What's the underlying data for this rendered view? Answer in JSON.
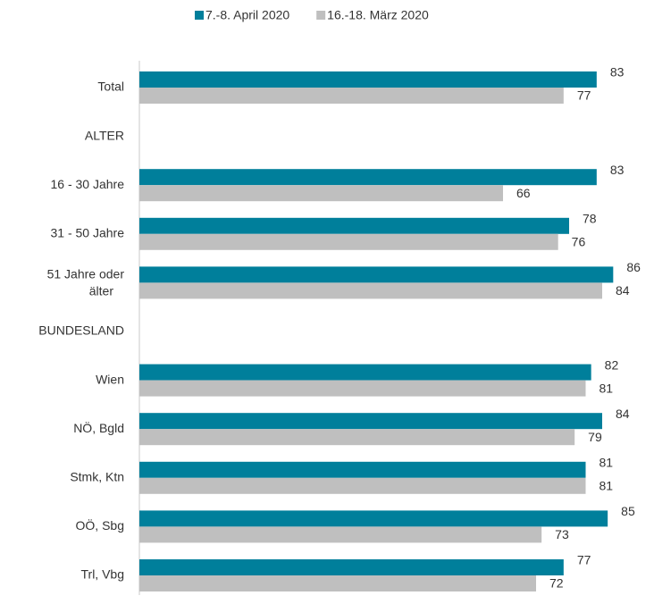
{
  "chart_data": {
    "type": "bar",
    "orientation": "horizontal",
    "categories": [
      "Total",
      "ALTER",
      "16 - 30 Jahre",
      "31 - 50 Jahre",
      "51 Jahre oder älter",
      "BUNDESLAND",
      "Wien",
      "NÖ, Bgld",
      "Stmk, Ktn",
      "OÖ, Sbg",
      "Trl, Vbg"
    ],
    "series": [
      {
        "name": "7.-8. April 2020",
        "color": "#007f9b",
        "values": [
          83,
          null,
          83,
          78,
          86,
          null,
          82,
          84,
          81,
          85,
          77
        ]
      },
      {
        "name": "16.-18. März 2020",
        "color": "#bfbfbf",
        "values": [
          77,
          null,
          66,
          76,
          84,
          null,
          81,
          79,
          81,
          73,
          72
        ]
      }
    ],
    "xlim": [
      0,
      90
    ],
    "legend": "top"
  }
}
